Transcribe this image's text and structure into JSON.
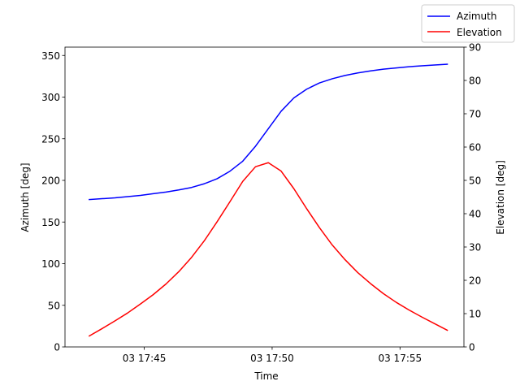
{
  "chart_data": {
    "type": "line",
    "xlabel": "Time",
    "ylabel_left": "Azimuth [deg]",
    "ylabel_right": "Elevation [deg]",
    "x_unit": "minutes",
    "x_ticks": [
      {
        "value": 45,
        "label": "03 17:45"
      },
      {
        "value": 50,
        "label": "03 17:50"
      },
      {
        "value": 55,
        "label": "03 17:55"
      }
    ],
    "xlim": [
      41.9,
      57.5
    ],
    "ylim_left": [
      0,
      360
    ],
    "yticks_left": [
      0,
      50,
      100,
      150,
      200,
      250,
      300,
      350
    ],
    "ylim_right": [
      0,
      90
    ],
    "yticks_right": [
      0,
      10,
      20,
      30,
      40,
      50,
      60,
      70,
      80,
      90
    ],
    "x": [
      42.85,
      43.35,
      43.85,
      44.35,
      44.85,
      45.35,
      45.85,
      46.35,
      46.85,
      47.35,
      47.85,
      48.35,
      48.85,
      49.35,
      49.85,
      50.35,
      50.85,
      51.35,
      51.85,
      52.35,
      52.85,
      53.35,
      53.85,
      54.35,
      54.85,
      55.35,
      55.85,
      56.35,
      56.85
    ],
    "series": [
      {
        "name": "Azimuth",
        "axis": "left",
        "color": "#0000ff",
        "values": [
          177,
          178,
          179,
          180.5,
          182,
          184,
          186,
          188.5,
          191.5,
          196,
          202,
          211,
          223,
          241,
          262,
          283,
          299,
          309.5,
          317,
          322,
          326,
          329,
          331.5,
          333.5,
          335,
          336.5,
          337.5,
          338.5,
          339.5
        ]
      },
      {
        "name": "Elevation",
        "axis": "right",
        "color": "#ff0000",
        "values": [
          3.3,
          5.5,
          7.8,
          10.2,
          12.9,
          15.7,
          18.9,
          22.6,
          26.9,
          31.9,
          37.6,
          43.6,
          49.7,
          54.1,
          55.3,
          52.8,
          47.5,
          41.5,
          35.8,
          30.6,
          26.2,
          22.3,
          19,
          16,
          13.4,
          11.1,
          9,
          7,
          5
        ]
      }
    ],
    "legend": {
      "position": "top-right",
      "entries": [
        "Azimuth",
        "Elevation"
      ]
    }
  }
}
